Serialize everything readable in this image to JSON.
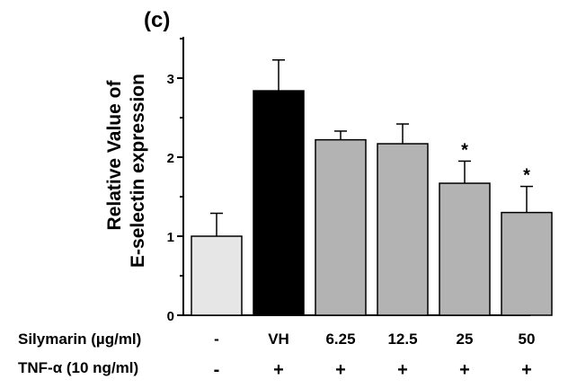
{
  "chart_data": {
    "type": "bar",
    "panel_label": "(c)",
    "ylabel_line1": "Relative Value of",
    "ylabel_line2": "E-selectin expression",
    "ylim": [
      0,
      3.5
    ],
    "yticks": [
      "0",
      "1",
      "2",
      "3"
    ],
    "categories": [
      "-",
      "VH",
      "6.25",
      "12.5",
      "25",
      "50"
    ],
    "values": [
      1.0,
      2.84,
      2.22,
      2.17,
      1.67,
      1.3
    ],
    "errors": [
      0.29,
      0.39,
      0.11,
      0.25,
      0.28,
      0.33
    ],
    "significance": [
      "",
      "",
      "",
      "",
      "*",
      "*"
    ],
    "colors": [
      "#e6e6e6",
      "#000000",
      "#b3b3b3",
      "#b3b3b3",
      "#b3b3b3",
      "#b3b3b3"
    ],
    "row1_label": "Silymarin (µg/ml)",
    "row2_label": "TNF-α (10 ng/ml)",
    "row2_values": [
      "-",
      "+",
      "+",
      "+",
      "+",
      "+"
    ]
  }
}
